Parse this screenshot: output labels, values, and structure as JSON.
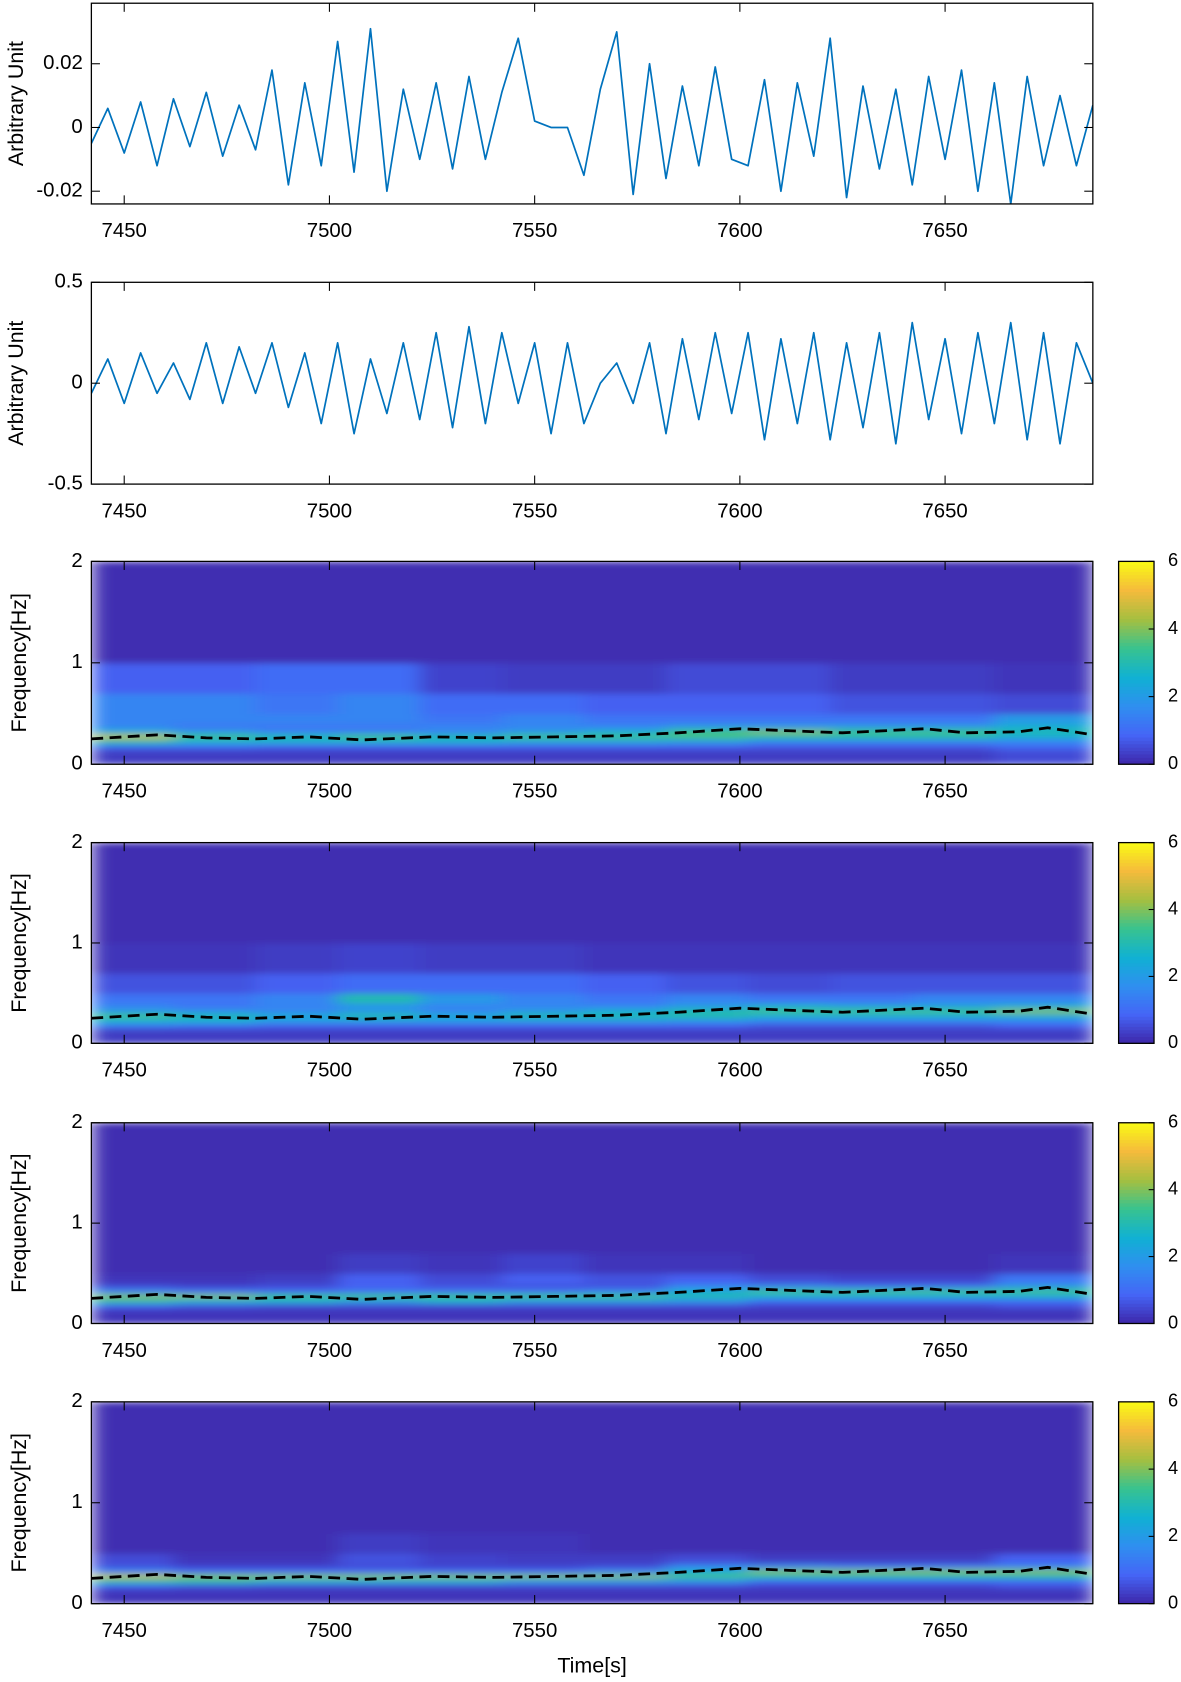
{
  "chart_data": [
    {
      "type": "line",
      "ylabel": "Arbitrary Unit",
      "color": "#0072bd",
      "xlim": [
        7442,
        7686
      ],
      "xticks": [
        7450,
        7500,
        7550,
        7600,
        7650
      ],
      "ylim": [
        -0.024,
        0.039
      ],
      "yticks": [
        -0.02,
        0,
        0.02
      ],
      "x": [
        7442,
        7446,
        7450,
        7454,
        7458,
        7462,
        7466,
        7470,
        7474,
        7478,
        7482,
        7486,
        7490,
        7494,
        7498,
        7502,
        7506,
        7510,
        7514,
        7518,
        7522,
        7526,
        7530,
        7534,
        7538,
        7542,
        7546,
        7550,
        7554,
        7558,
        7562,
        7566,
        7570,
        7574,
        7578,
        7582,
        7586,
        7590,
        7594,
        7598,
        7602,
        7606,
        7610,
        7614,
        7618,
        7622,
        7626,
        7630,
        7634,
        7638,
        7642,
        7646,
        7650,
        7654,
        7658,
        7662,
        7666,
        7670,
        7674,
        7678,
        7682,
        7686
      ],
      "values": [
        -0.005,
        0.006,
        -0.008,
        0.008,
        -0.012,
        0.009,
        -0.006,
        0.011,
        -0.009,
        0.007,
        -0.007,
        0.018,
        -0.018,
        0.014,
        -0.012,
        0.027,
        -0.014,
        0.031,
        -0.02,
        0.012,
        -0.01,
        0.014,
        -0.013,
        0.016,
        -0.01,
        0.011,
        0.028,
        0.002,
        0,
        0,
        -0.015,
        0.012,
        0.03,
        -0.021,
        0.02,
        -0.016,
        0.013,
        -0.012,
        0.019,
        -0.01,
        -0.012,
        0.015,
        -0.02,
        0.014,
        -0.009,
        0.028,
        -0.022,
        0.013,
        -0.013,
        0.012,
        -0.018,
        0.016,
        -0.01,
        0.018,
        -0.02,
        0.014,
        -0.024,
        0.016,
        -0.012,
        0.01,
        -0.012,
        0.007
      ]
    },
    {
      "type": "line",
      "ylabel": "Arbitrary Unit",
      "color": "#0072bd",
      "xlim": [
        7442,
        7686
      ],
      "xticks": [
        7450,
        7500,
        7550,
        7600,
        7650
      ],
      "ylim": [
        -0.5,
        0.5
      ],
      "yticks": [
        -0.5,
        0,
        0.5
      ],
      "x": [
        7442,
        7446,
        7450,
        7454,
        7458,
        7462,
        7466,
        7470,
        7474,
        7478,
        7482,
        7486,
        7490,
        7494,
        7498,
        7502,
        7506,
        7510,
        7514,
        7518,
        7522,
        7526,
        7530,
        7534,
        7538,
        7542,
        7546,
        7550,
        7554,
        7558,
        7562,
        7566,
        7570,
        7574,
        7578,
        7582,
        7586,
        7590,
        7594,
        7598,
        7602,
        7606,
        7610,
        7614,
        7618,
        7622,
        7626,
        7630,
        7634,
        7638,
        7642,
        7646,
        7650,
        7654,
        7658,
        7662,
        7666,
        7670,
        7674,
        7678,
        7682,
        7686
      ],
      "values": [
        -0.05,
        0.12,
        -0.1,
        0.15,
        -0.05,
        0.1,
        -0.08,
        0.2,
        -0.1,
        0.18,
        -0.05,
        0.2,
        -0.12,
        0.15,
        -0.2,
        0.2,
        -0.25,
        0.12,
        -0.15,
        0.2,
        -0.18,
        0.25,
        -0.22,
        0.28,
        -0.2,
        0.25,
        -0.1,
        0.2,
        -0.25,
        0.2,
        -0.2,
        0,
        0.1,
        -0.1,
        0.2,
        -0.25,
        0.22,
        -0.18,
        0.25,
        -0.15,
        0.25,
        -0.28,
        0.22,
        -0.2,
        0.25,
        -0.28,
        0.2,
        -0.22,
        0.25,
        -0.3,
        0.3,
        -0.18,
        0.22,
        -0.25,
        0.25,
        -0.2,
        0.3,
        -0.28,
        0.25,
        -0.3,
        0.2,
        0
      ]
    },
    {
      "type": "heatmap",
      "ylabel": "Frequency[Hz]",
      "xlim": [
        7442,
        7686
      ],
      "xticks": [
        7450,
        7500,
        7550,
        7600,
        7650
      ],
      "ylim": [
        0,
        2
      ],
      "yticks": [
        0,
        1,
        2
      ],
      "xbins": [
        7442,
        7462,
        7482,
        7502,
        7522,
        7542,
        7562,
        7582,
        7602,
        7622,
        7642,
        7662,
        7686
      ],
      "ybins": [
        0,
        0.15,
        0.2,
        0.25,
        0.3,
        0.35,
        0.4,
        0.5,
        0.7,
        1.0,
        2.0
      ],
      "z": [
        [
          0.3,
          0.3,
          0.3,
          0.3,
          0.3,
          0.3,
          0.3,
          0.3,
          0.3,
          0.3,
          0.3,
          0.5
        ],
        [
          1,
          1,
          0.8,
          0.8,
          0.8,
          0.8,
          0.8,
          0.8,
          0.7,
          0.7,
          0.7,
          1
        ],
        [
          3,
          2.5,
          2.5,
          2.5,
          2.5,
          2.2,
          2.2,
          2,
          1.5,
          1.5,
          1.5,
          1.5
        ],
        [
          4.5,
          3.5,
          3,
          3.5,
          3,
          3.5,
          3.5,
          3.5,
          3,
          3,
          3,
          2.5
        ],
        [
          2.5,
          2,
          1.5,
          1.5,
          1.5,
          2,
          2.5,
          3.5,
          4,
          3.5,
          3.5,
          3
        ],
        [
          1.5,
          1.2,
          1.2,
          1.2,
          1.5,
          1.5,
          1.5,
          2,
          2,
          2,
          2,
          2.5
        ],
        [
          1.5,
          1.5,
          1.5,
          1.5,
          1.2,
          1.5,
          1.2,
          1.2,
          1.2,
          1.2,
          1.2,
          2
        ],
        [
          1.5,
          1.5,
          1.2,
          1.5,
          1,
          1,
          0.8,
          0.8,
          0.8,
          0.6,
          0.6,
          0.5
        ],
        [
          0.8,
          0.8,
          1,
          1,
          0.4,
          0.3,
          0.3,
          0.5,
          0.5,
          0.3,
          0.3,
          0.2
        ],
        [
          0.1,
          0.1,
          0.1,
          0.1,
          0.1,
          0.1,
          0.1,
          0.1,
          0.1,
          0.1,
          0.1,
          0.1
        ]
      ],
      "clim": [
        0,
        6
      ],
      "cticks": [
        0,
        2,
        4,
        6
      ],
      "colormap": [
        "#3e26a8",
        "#4565f6",
        "#2f8ff0",
        "#10b1d3",
        "#38c38f",
        "#a5bf40",
        "#f5ba3c",
        "#f9fb15"
      ],
      "line_x": [
        7442,
        7458,
        7470,
        7482,
        7495,
        7508,
        7525,
        7540,
        7555,
        7570,
        7585,
        7600,
        7612,
        7625,
        7645,
        7655,
        7668,
        7675,
        7686
      ],
      "line_values": [
        0.25,
        0.29,
        0.26,
        0.25,
        0.27,
        0.24,
        0.27,
        0.26,
        0.27,
        0.28,
        0.31,
        0.35,
        0.33,
        0.31,
        0.35,
        0.31,
        0.32,
        0.36,
        0.29
      ],
      "line_color": "#000000"
    },
    {
      "type": "heatmap",
      "ylabel": "Frequency[Hz]",
      "xlim": [
        7442,
        7686
      ],
      "xticks": [
        7450,
        7500,
        7550,
        7600,
        7650
      ],
      "ylim": [
        0,
        2
      ],
      "yticks": [
        0,
        1,
        2
      ],
      "xbins": [
        7442,
        7462,
        7482,
        7502,
        7522,
        7542,
        7562,
        7582,
        7602,
        7622,
        7642,
        7662,
        7686
      ],
      "ybins": [
        0,
        0.15,
        0.2,
        0.25,
        0.3,
        0.35,
        0.4,
        0.5,
        0.7,
        1.0,
        2.0
      ],
      "z": [
        [
          0.3,
          0.3,
          0.3,
          0.3,
          0.3,
          0.3,
          0.3,
          0.3,
          0.3,
          0.3,
          0.3,
          0.3
        ],
        [
          1.2,
          1,
          0.8,
          0.8,
          0.8,
          0.8,
          0.8,
          0.8,
          0.6,
          0.6,
          0.6,
          0.8
        ],
        [
          2.5,
          2.5,
          2,
          2,
          2,
          2,
          2,
          1.8,
          1.5,
          1.5,
          1.5,
          1.5
        ],
        [
          3.5,
          3,
          2.5,
          3,
          2.5,
          3,
          3,
          3,
          2.5,
          2.5,
          2.5,
          2.5
        ],
        [
          2,
          1.8,
          1.5,
          2,
          1.5,
          2,
          2.5,
          3,
          3.5,
          3.5,
          3.5,
          4
        ],
        [
          1.5,
          1.2,
          1.5,
          1.8,
          1.5,
          1.5,
          1.5,
          2,
          2.5,
          2.2,
          2.2,
          2.5
        ],
        [
          1.2,
          1.2,
          1.5,
          3,
          2,
          1.5,
          1.2,
          1.5,
          1.2,
          1.2,
          1.5,
          1.5
        ],
        [
          0.6,
          0.6,
          0.8,
          1,
          1,
          1,
          0.8,
          0.6,
          0.5,
          0.6,
          0.6,
          0.6
        ],
        [
          0.2,
          0.2,
          0.3,
          0.4,
          0.3,
          0.3,
          0.2,
          0.2,
          0.2,
          0.2,
          0.2,
          0.2
        ],
        [
          0.1,
          0.1,
          0.1,
          0.1,
          0.1,
          0.1,
          0.1,
          0.1,
          0.1,
          0.1,
          0.1,
          0.1
        ]
      ],
      "clim": [
        0,
        6
      ],
      "cticks": [
        0,
        2,
        4,
        6
      ],
      "colormap": [
        "#3e26a8",
        "#4565f6",
        "#2f8ff0",
        "#10b1d3",
        "#38c38f",
        "#a5bf40",
        "#f5ba3c",
        "#f9fb15"
      ],
      "line_x": [
        7442,
        7458,
        7470,
        7482,
        7495,
        7508,
        7525,
        7540,
        7555,
        7570,
        7585,
        7600,
        7612,
        7625,
        7645,
        7655,
        7668,
        7675,
        7686
      ],
      "line_values": [
        0.25,
        0.29,
        0.26,
        0.25,
        0.27,
        0.24,
        0.27,
        0.26,
        0.27,
        0.28,
        0.31,
        0.35,
        0.33,
        0.31,
        0.35,
        0.31,
        0.32,
        0.36,
        0.29
      ],
      "line_color": "#000000"
    },
    {
      "type": "heatmap",
      "ylabel": "Frequency[Hz]",
      "xlim": [
        7442,
        7686
      ],
      "xticks": [
        7450,
        7500,
        7550,
        7600,
        7650
      ],
      "ylim": [
        0,
        2
      ],
      "yticks": [
        0,
        1,
        2
      ],
      "xbins": [
        7442,
        7462,
        7482,
        7502,
        7522,
        7542,
        7562,
        7582,
        7602,
        7622,
        7642,
        7662,
        7686
      ],
      "ybins": [
        0,
        0.15,
        0.2,
        0.25,
        0.3,
        0.35,
        0.4,
        0.5,
        0.7,
        1.0,
        2.0
      ],
      "z": [
        [
          0.2,
          0.2,
          0.2,
          0.2,
          0.2,
          0.2,
          0.2,
          0.2,
          0.2,
          0.2,
          0.2,
          0.2
        ],
        [
          0.8,
          0.6,
          0.5,
          0.5,
          0.5,
          0.5,
          0.5,
          0.5,
          0.4,
          0.4,
          0.4,
          0.6
        ],
        [
          3,
          2.5,
          2.5,
          2,
          2.5,
          2,
          2,
          1.8,
          1,
          1,
          1,
          1
        ],
        [
          4,
          4,
          3.5,
          3.5,
          3.5,
          3.5,
          3.5,
          3,
          2.5,
          2.5,
          2.5,
          2.5
        ],
        [
          1.5,
          1.2,
          1,
          1.2,
          1.2,
          1.2,
          1.5,
          2.5,
          3.5,
          3.5,
          3.5,
          3.5
        ],
        [
          0.5,
          0.4,
          0.5,
          0.8,
          0.6,
          0.6,
          0.6,
          1.5,
          1.5,
          1.2,
          1.2,
          2
        ],
        [
          0.2,
          0.2,
          0.3,
          0.8,
          0.5,
          0.8,
          0.6,
          0.8,
          0.5,
          0.4,
          0.4,
          1.2
        ],
        [
          0.1,
          0.1,
          0.1,
          0.3,
          0.2,
          0.4,
          0.2,
          0.2,
          0.1,
          0.1,
          0.1,
          0.2
        ],
        [
          0.1,
          0.1,
          0.1,
          0.1,
          0.1,
          0.1,
          0.1,
          0.1,
          0.1,
          0.1,
          0.1,
          0.1
        ],
        [
          0.1,
          0.1,
          0.1,
          0.1,
          0.1,
          0.1,
          0.1,
          0.1,
          0.1,
          0.1,
          0.1,
          0.1
        ]
      ],
      "clim": [
        0,
        6
      ],
      "cticks": [
        0,
        2,
        4,
        6
      ],
      "colormap": [
        "#3e26a8",
        "#4565f6",
        "#2f8ff0",
        "#10b1d3",
        "#38c38f",
        "#a5bf40",
        "#f5ba3c",
        "#f9fb15"
      ],
      "line_x": [
        7442,
        7458,
        7470,
        7482,
        7495,
        7508,
        7525,
        7540,
        7555,
        7570,
        7585,
        7600,
        7612,
        7625,
        7645,
        7655,
        7668,
        7675,
        7686
      ],
      "line_values": [
        0.25,
        0.29,
        0.26,
        0.25,
        0.27,
        0.24,
        0.27,
        0.26,
        0.27,
        0.28,
        0.31,
        0.35,
        0.33,
        0.31,
        0.35,
        0.31,
        0.32,
        0.36,
        0.29
      ],
      "line_color": "#000000"
    },
    {
      "type": "heatmap",
      "ylabel": "Frequency[Hz]",
      "xlabel": "Time[s]",
      "xlim": [
        7442,
        7686
      ],
      "xticks": [
        7450,
        7500,
        7550,
        7600,
        7650
      ],
      "ylim": [
        0,
        2
      ],
      "yticks": [
        0,
        1,
        2
      ],
      "xbins": [
        7442,
        7462,
        7482,
        7502,
        7522,
        7542,
        7562,
        7582,
        7602,
        7622,
        7642,
        7662,
        7686
      ],
      "ybins": [
        0,
        0.15,
        0.2,
        0.25,
        0.3,
        0.35,
        0.4,
        0.5,
        0.7,
        1.0,
        2.0
      ],
      "z": [
        [
          0.2,
          0.2,
          0.2,
          0.2,
          0.2,
          0.2,
          0.2,
          0.2,
          0.2,
          0.2,
          0.2,
          0.2
        ],
        [
          0.8,
          0.6,
          0.5,
          0.5,
          0.5,
          0.5,
          0.5,
          0.5,
          0.4,
          0.4,
          0.4,
          0.6
        ],
        [
          3,
          3,
          2.5,
          2.5,
          2.5,
          2,
          2,
          1.8,
          1,
          1,
          1,
          1
        ],
        [
          4.5,
          4,
          4,
          4,
          4,
          4,
          4,
          3.5,
          3,
          3,
          3,
          3
        ],
        [
          1.5,
          1,
          1,
          1,
          1,
          1,
          1.5,
          2.5,
          4,
          4,
          4,
          4
        ],
        [
          0.6,
          0.4,
          0.4,
          0.5,
          0.4,
          0.4,
          0.5,
          1.5,
          1.5,
          1.2,
          1.2,
          1.5
        ],
        [
          0.5,
          0.2,
          0.2,
          0.6,
          0.4,
          0.3,
          0.3,
          0.5,
          0.3,
          0.3,
          0.3,
          0.8
        ],
        [
          0.1,
          0.1,
          0.1,
          0.3,
          0.2,
          0.2,
          0.1,
          0.1,
          0.1,
          0.1,
          0.1,
          0.1
        ],
        [
          0.1,
          0.1,
          0.1,
          0.1,
          0.1,
          0.1,
          0.1,
          0.1,
          0.1,
          0.1,
          0.1,
          0.1
        ],
        [
          0.1,
          0.1,
          0.1,
          0.1,
          0.1,
          0.1,
          0.1,
          0.1,
          0.1,
          0.1,
          0.1,
          0.1
        ]
      ],
      "clim": [
        0,
        6
      ],
      "cticks": [
        0,
        2,
        4,
        6
      ],
      "colormap": [
        "#3e26a8",
        "#4565f6",
        "#2f8ff0",
        "#10b1d3",
        "#38c38f",
        "#a5bf40",
        "#f5ba3c",
        "#f9fb15"
      ],
      "line_x": [
        7442,
        7458,
        7470,
        7482,
        7495,
        7508,
        7525,
        7540,
        7555,
        7570,
        7585,
        7600,
        7612,
        7625,
        7645,
        7655,
        7668,
        7675,
        7686
      ],
      "line_values": [
        0.25,
        0.29,
        0.26,
        0.25,
        0.27,
        0.24,
        0.27,
        0.26,
        0.27,
        0.28,
        0.31,
        0.35,
        0.33,
        0.31,
        0.35,
        0.31,
        0.32,
        0.36,
        0.29
      ],
      "line_color": "#000000"
    }
  ]
}
